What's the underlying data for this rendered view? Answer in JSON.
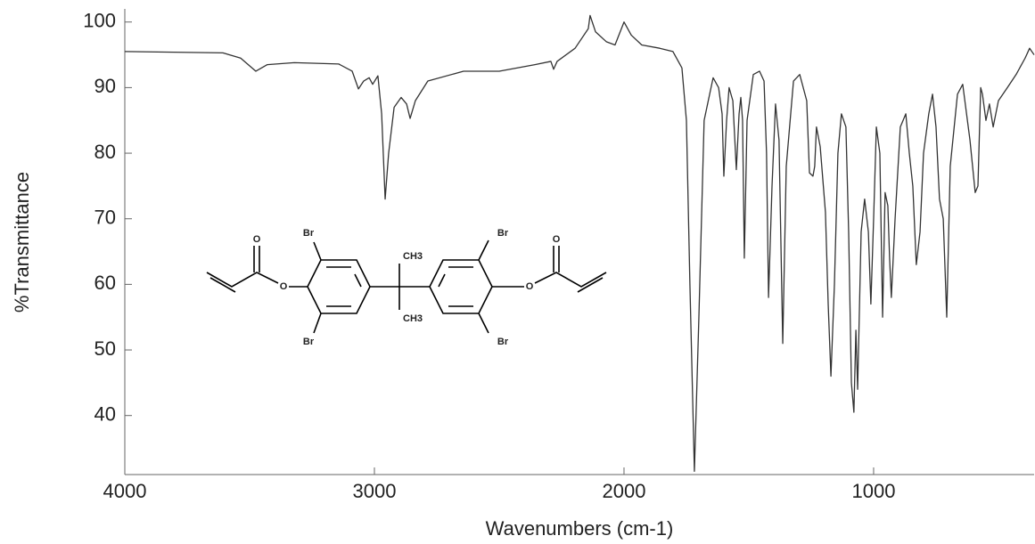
{
  "chart_data": {
    "type": "line",
    "xlabel": "Wavenumbers (cm-1)",
    "ylabel": "%Transmittance",
    "xlim": [
      4000,
      357
    ],
    "ylim": [
      31,
      102
    ],
    "xticks": [
      4000,
      3000,
      2000,
      1000
    ],
    "yticks": [
      40,
      50,
      60,
      70,
      80,
      90,
      100
    ],
    "color": "#333333",
    "x": [
      4000,
      3607,
      3536,
      3475,
      3429,
      3321,
      3143,
      3089,
      3064,
      3043,
      3021,
      3007,
      2986,
      2971,
      2957,
      2943,
      2921,
      2893,
      2871,
      2857,
      2836,
      2786,
      2643,
      2500,
      2357,
      2293,
      2282,
      2268,
      2196,
      2143,
      2136,
      2114,
      2071,
      2036,
      2000,
      1971,
      1929,
      1857,
      1804,
      1768,
      1750,
      1736,
      1718,
      1700,
      1679,
      1643,
      1621,
      1607,
      1600,
      1589,
      1579,
      1564,
      1550,
      1539,
      1532,
      1525,
      1518,
      1507,
      1482,
      1457,
      1439,
      1429,
      1421,
      1407,
      1393,
      1379,
      1364,
      1350,
      1321,
      1296,
      1268,
      1257,
      1243,
      1236,
      1229,
      1214,
      1193,
      1182,
      1171,
      1157,
      1143,
      1129,
      1111,
      1100,
      1089,
      1079,
      1071,
      1064,
      1050,
      1036,
      1021,
      1011,
      1000,
      989,
      975,
      964,
      954,
      943,
      936,
      929,
      914,
      893,
      871,
      857,
      843,
      829,
      814,
      800,
      779,
      764,
      750,
      736,
      721,
      707,
      693,
      664,
      643,
      614,
      593,
      582,
      571,
      564,
      550,
      536,
      521,
      500,
      464,
      429,
      393,
      375,
      357
    ],
    "values": [
      95.5,
      95.3,
      94.5,
      92.5,
      93.5,
      93.8,
      93.6,
      92.5,
      89.8,
      91,
      91.5,
      90.5,
      91.8,
      86,
      73,
      80,
      87,
      88.5,
      87.5,
      85.3,
      88,
      91,
      92.5,
      92.5,
      93.5,
      94,
      92.8,
      94,
      96,
      99,
      101,
      98.5,
      97,
      96.5,
      100,
      98,
      96.5,
      96,
      95.5,
      93,
      85,
      60,
      31.5,
      55,
      85,
      91.5,
      90,
      86,
      76.5,
      85,
      90,
      88,
      77.5,
      86,
      88.5,
      85,
      64,
      85,
      92,
      92.5,
      91,
      80,
      58,
      75,
      87.5,
      82,
      51,
      78,
      91,
      92,
      88,
      77,
      76.5,
      78,
      84,
      81,
      71,
      57,
      46,
      60,
      80,
      86,
      84,
      68,
      45,
      40.5,
      53,
      44,
      68,
      73,
      68,
      57,
      70,
      84,
      80,
      55,
      74,
      72,
      64,
      58,
      70,
      84,
      86,
      80,
      75,
      63,
      68,
      80,
      86,
      89,
      84,
      73,
      70,
      55,
      78,
      89,
      90.5,
      82,
      74,
      75,
      90,
      89,
      85,
      87.5,
      84,
      88,
      90,
      92,
      94.5,
      96,
      95
    ],
    "structure_labels": [
      "O",
      "Br",
      "Br",
      "O",
      "CH3",
      "CH3",
      "Br",
      "Br",
      "O",
      "O"
    ]
  }
}
